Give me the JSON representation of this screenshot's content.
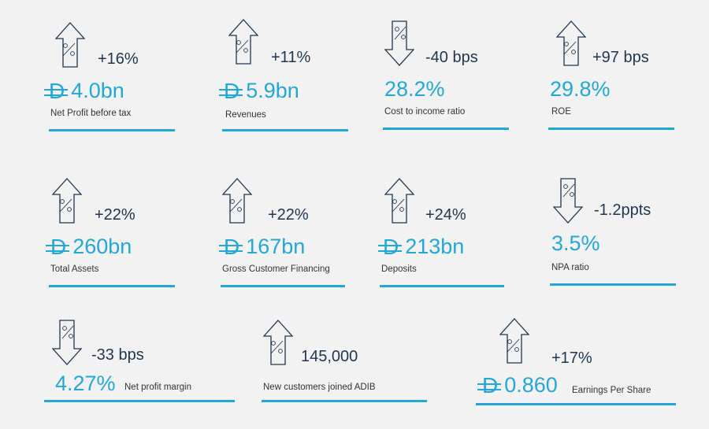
{
  "currency_symbol": "D",
  "colors": {
    "accent": "#22a8d8",
    "dark": "#1f3550",
    "background": "#f2f2f2"
  },
  "kpis": [
    {
      "direction": "up",
      "delta": "+16%",
      "value": "4.0bn",
      "currency": true,
      "label": "Net Profit before tax"
    },
    {
      "direction": "up",
      "delta": "+11%",
      "value": "5.9bn",
      "currency": true,
      "label": "Revenues"
    },
    {
      "direction": "down",
      "delta": "-40 bps",
      "value": "28.2%",
      "currency": false,
      "label": "Cost to income ratio"
    },
    {
      "direction": "up",
      "delta": "+97 bps",
      "value": "29.8%",
      "currency": false,
      "label": "ROE"
    },
    {
      "direction": "up",
      "delta": "+22%",
      "value": "260bn",
      "currency": true,
      "label": "Total Assets"
    },
    {
      "direction": "up",
      "delta": "+22%",
      "value": "167bn",
      "currency": true,
      "label": "Gross Customer Financing"
    },
    {
      "direction": "up",
      "delta": "+24%",
      "value": "213bn",
      "currency": true,
      "label": "Deposits"
    },
    {
      "direction": "down",
      "delta": "-1.2ppts",
      "value": "3.5%",
      "currency": false,
      "label": "NPA ratio"
    },
    {
      "direction": "down",
      "delta": "-33 bps",
      "value": "4.27%",
      "currency": false,
      "label": "Net profit margin"
    },
    {
      "direction": "up",
      "delta": "145,000",
      "value": "",
      "currency": false,
      "label": "New customers joined ADIB"
    },
    {
      "direction": "up",
      "delta": "+17%",
      "value": "0.860",
      "currency": true,
      "label": "Earnings Per Share"
    }
  ]
}
